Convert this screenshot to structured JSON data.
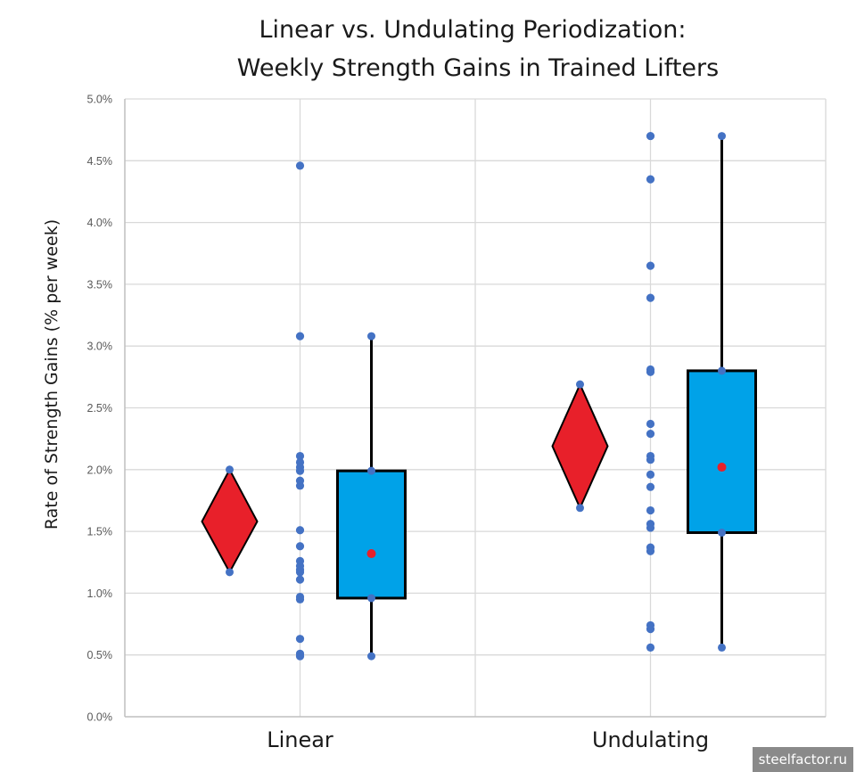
{
  "colors": {
    "grid": "#d9d9d9",
    "axis": "#bfbfbf",
    "points": "#4472c4",
    "diamond": "#e8202a",
    "box": "#00a2e8",
    "mean_marker": "#e8202a",
    "whisker": "#000000"
  },
  "watermark": "steelfactor.ru",
  "chart_data": {
    "type": "scatter",
    "title": [
      "Linear vs. Undulating Periodization:",
      "Weekly Strength Gains in Trained Lifters"
    ],
    "ylabel": "Rate of Strength Gains (% per week)",
    "xlabel": "",
    "categories": [
      "Linear",
      "Undulating"
    ],
    "ylim": [
      0,
      5
    ],
    "yticks": [
      0,
      0.5,
      1,
      1.5,
      2,
      2.5,
      3,
      3.5,
      4,
      4.5,
      5
    ],
    "ytick_labels": [
      "0.0%",
      "0.5%",
      "1.0%",
      "1.5%",
      "2.0%",
      "2.5%",
      "3.0%",
      "3.5%",
      "4.0%",
      "4.5%",
      "5.0%"
    ],
    "grid": true,
    "groups": [
      {
        "name": "Linear",
        "points": [
          4.46,
          3.08,
          2.11,
          2.06,
          2.02,
          1.99,
          1.91,
          1.87,
          1.51,
          1.38,
          1.26,
          1.22,
          1.19,
          1.17,
          1.11,
          0.97,
          0.95,
          0.63,
          0.51,
          0.49
        ],
        "diamond": {
          "mean": 1.58,
          "lower": 1.17,
          "upper": 2.0
        },
        "box": {
          "whisker_low": 0.49,
          "q1": 0.96,
          "mean": 1.32,
          "q3": 1.99,
          "whisker_high": 3.08
        }
      },
      {
        "name": "Undulating",
        "points": [
          4.7,
          4.35,
          3.65,
          3.39,
          2.81,
          2.79,
          2.37,
          2.29,
          2.11,
          2.08,
          1.96,
          1.86,
          1.67,
          1.56,
          1.53,
          1.37,
          1.34,
          0.74,
          0.71,
          0.56
        ],
        "diamond": {
          "mean": 2.19,
          "lower": 1.69,
          "upper": 2.69
        },
        "box": {
          "whisker_low": 0.56,
          "q1": 1.49,
          "mean": 2.02,
          "q3": 2.8,
          "whisker_high": 4.7
        }
      }
    ]
  }
}
